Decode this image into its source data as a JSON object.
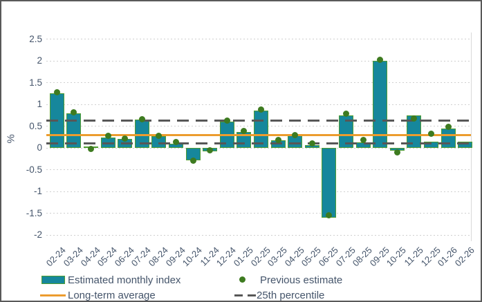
{
  "chart_data": {
    "type": "bar",
    "title": "",
    "ylabel": "%",
    "xlabel": "",
    "categories": [
      "02-24",
      "03-24",
      "04-24",
      "05-24",
      "06-24",
      "07-24",
      "08-24",
      "09-24",
      "10-24",
      "11-24",
      "12-24",
      "01-25",
      "02-25",
      "03-25",
      "04-25",
      "05-25",
      "06-25",
      "07-25",
      "08-25",
      "09-25",
      "10-25",
      "11-25",
      "12-25",
      "01-26",
      "02-26"
    ],
    "series": [
      {
        "name": "Estimated monthly index",
        "type": "bar",
        "color": "#16879C",
        "border_color": "#4F9C2F",
        "values": [
          1.25,
          0.8,
          0.03,
          0.24,
          0.2,
          0.65,
          0.27,
          0.09,
          -0.28,
          -0.08,
          0.6,
          0.37,
          0.85,
          0.17,
          0.28,
          0.07,
          -1.6,
          0.75,
          0.13,
          2.0,
          -0.07,
          0.75,
          0.15,
          0.45,
          0.15
        ]
      },
      {
        "name": "Previous estimate",
        "type": "scatter",
        "color": "#3E7B20",
        "values": [
          1.28,
          0.82,
          -0.02,
          0.27,
          0.21,
          0.66,
          0.28,
          0.13,
          -0.3,
          -0.06,
          0.62,
          0.39,
          0.88,
          0.18,
          0.3,
          0.1,
          -1.55,
          0.78,
          0.19,
          2.02,
          -0.1,
          0.67,
          0.33,
          0.48,
          null
        ]
      },
      {
        "name": "Long-term average",
        "type": "line",
        "color": "#EC9C2E",
        "values": [
          0.29
        ]
      },
      {
        "name": "25th percentile",
        "type": "dashed-line",
        "color": "#575757",
        "values": [
          0.62,
          0.11
        ]
      }
    ],
    "yticks": [
      2.5,
      2,
      1.5,
      1,
      0.5,
      0,
      -0.5,
      -1,
      -1.5,
      -2
    ],
    "ytick_labels": [
      "2.5",
      "2",
      "1.5",
      "1",
      "0.5",
      "0",
      "-0.5",
      "-1",
      "-1.5",
      "-2"
    ],
    "ylim": [
      -2.15,
      2.65
    ],
    "grid": "horizontal-dotted",
    "legend_position": "bottom"
  }
}
